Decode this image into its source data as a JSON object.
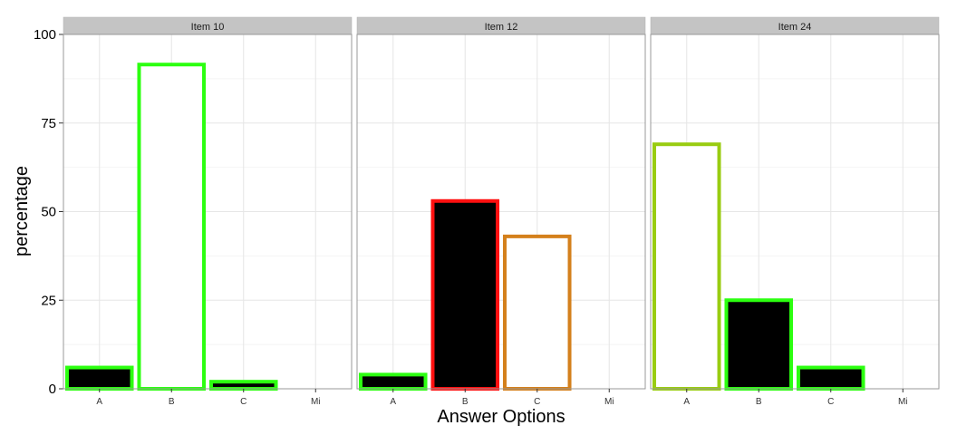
{
  "chart_data": {
    "type": "bar",
    "xlabel": "Answer Options",
    "ylabel": "percentage",
    "ylim": [
      0,
      100
    ],
    "yticks": [
      "0",
      "25",
      "50",
      "75",
      "100"
    ],
    "categories": [
      "A",
      "B",
      "C",
      "Mi"
    ],
    "grid": true,
    "facets": [
      {
        "title": "Item 10",
        "bars": [
          {
            "category": "A",
            "value": 6,
            "fill": "#000000",
            "outline": "#2cff10"
          },
          {
            "category": "B",
            "value": 91.5,
            "fill": "#ffffff",
            "outline": "#2cff10"
          },
          {
            "category": "C",
            "value": 2,
            "fill": "#000000",
            "outline": "#2cff10"
          },
          {
            "category": "Mi",
            "value": 0,
            "fill": "#000000",
            "outline": "#2cff10"
          }
        ]
      },
      {
        "title": "Item 12",
        "bars": [
          {
            "category": "A",
            "value": 4,
            "fill": "#000000",
            "outline": "#2cff10"
          },
          {
            "category": "B",
            "value": 53,
            "fill": "#000000",
            "outline": "#ff1010"
          },
          {
            "category": "C",
            "value": 43,
            "fill": "#ffffff",
            "outline": "#d4801c"
          },
          {
            "category": "Mi",
            "value": 0,
            "fill": "#000000",
            "outline": "#2cff10"
          }
        ]
      },
      {
        "title": "Item 24",
        "bars": [
          {
            "category": "A",
            "value": 69,
            "fill": "#ffffff",
            "outline": "#99cc11"
          },
          {
            "category": "B",
            "value": 25,
            "fill": "#000000",
            "outline": "#2cff10"
          },
          {
            "category": "C",
            "value": 6,
            "fill": "#000000",
            "outline": "#2cff10"
          },
          {
            "category": "Mi",
            "value": 0,
            "fill": "#000000",
            "outline": "#2cff10"
          }
        ]
      }
    ],
    "colors": {
      "strip_background": "#c4c4c4",
      "panel_border": "#999999",
      "grid_major": "#e6e6e6",
      "grid_minor": "#f4f4f4"
    }
  }
}
